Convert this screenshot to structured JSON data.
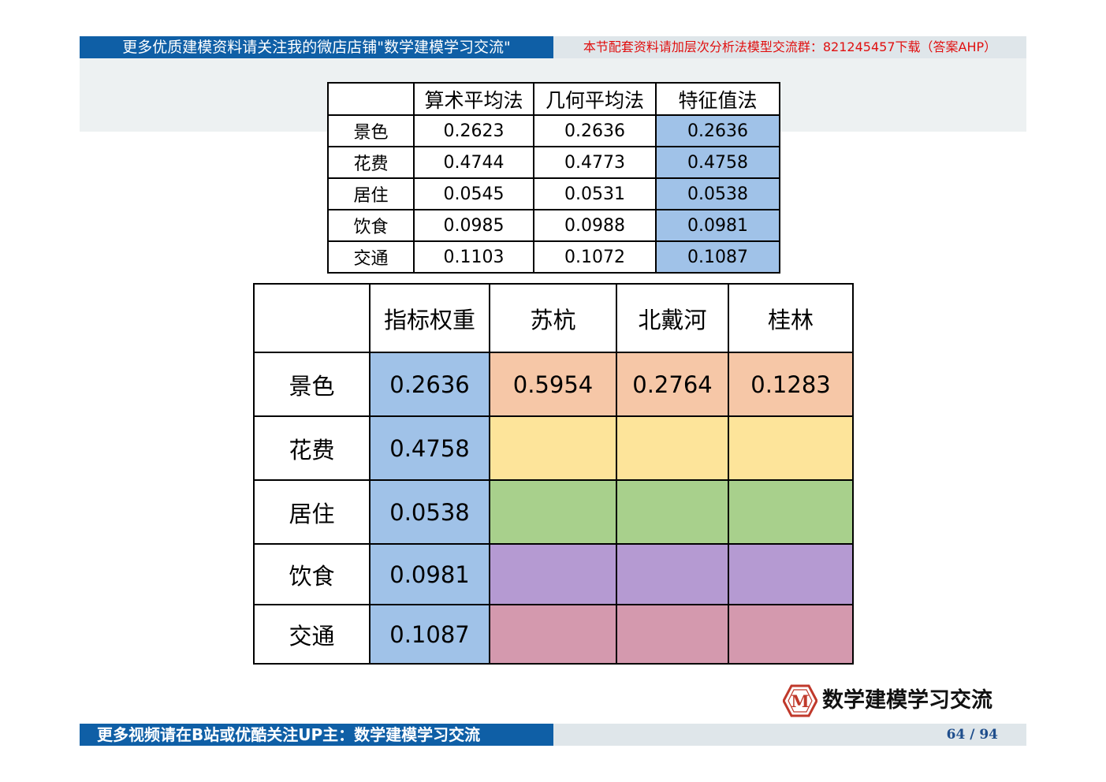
{
  "header": {
    "left_text": "更多优质建模资料请关注我的微店店铺\"数学建模学习交流\"",
    "right_text": "本节配套资料请加层次分析法模型交流群：821245457下载（答案AHP）"
  },
  "table_methods": {
    "headers": [
      "",
      "算术平均法",
      "几何平均法",
      "特征值法"
    ],
    "rows": [
      {
        "label": "景色",
        "values": [
          "0.2623",
          "0.2636",
          "0.2636"
        ]
      },
      {
        "label": "花费",
        "values": [
          "0.4744",
          "0.4773",
          "0.4758"
        ]
      },
      {
        "label": "居住",
        "values": [
          "0.0545",
          "0.0531",
          "0.0538"
        ]
      },
      {
        "label": "饮食",
        "values": [
          "0.0985",
          "0.0988",
          "0.0981"
        ]
      },
      {
        "label": "交通",
        "values": [
          "0.1103",
          "0.1072",
          "0.1087"
        ]
      }
    ]
  },
  "table_decision": {
    "headers": [
      "",
      "指标权重",
      "苏杭",
      "北戴河",
      "桂林"
    ],
    "rows": [
      {
        "label": "景色",
        "weight": "0.2636",
        "values": [
          "0.5954",
          "0.2764",
          "0.1283"
        ]
      },
      {
        "label": "花费",
        "weight": "0.4758",
        "values": [
          "",
          "",
          ""
        ]
      },
      {
        "label": "居住",
        "weight": "0.0538",
        "values": [
          "",
          "",
          ""
        ]
      },
      {
        "label": "饮食",
        "weight": "0.0981",
        "values": [
          "",
          "",
          ""
        ]
      },
      {
        "label": "交通",
        "weight": "0.1087",
        "values": [
          "",
          "",
          ""
        ]
      }
    ]
  },
  "colors": {
    "header_blue": "#0f5fa6",
    "weight_blue": "#a0c2e8",
    "row_orange": "#f6c7a7",
    "row_yellow": "#fde49a",
    "row_green": "#a8d08c",
    "row_purple": "#b59ad2",
    "row_pink": "#d499ae"
  },
  "logo": {
    "letter": "M",
    "text": "数学建模学习交流"
  },
  "footer": {
    "left_text": "更多视频请在B站或优酷关注UP主：数学建模学习交流",
    "page": "64 / 94"
  }
}
